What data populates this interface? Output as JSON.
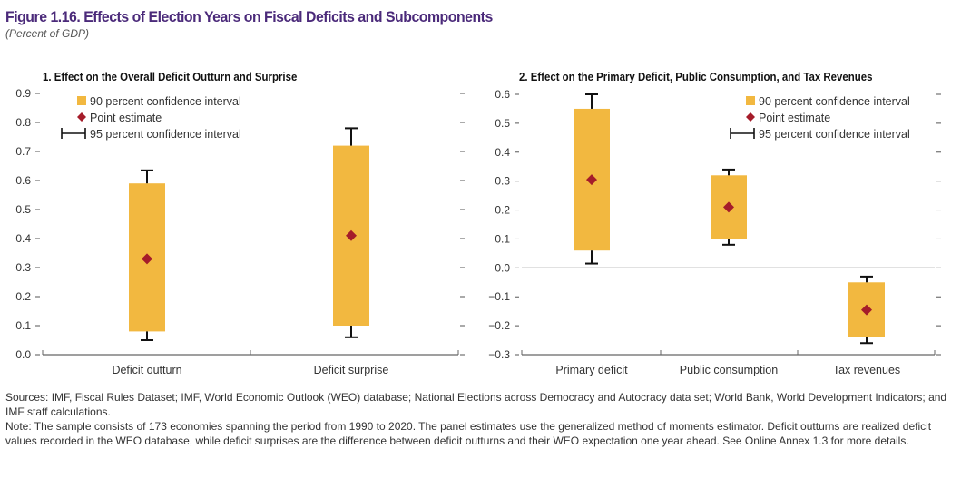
{
  "figure": {
    "title": "Figure 1.16. Effects of Election Years on Fiscal Deficits and Subcomponents",
    "subtitle": "(Percent of GDP)",
    "sources": "Sources: IMF, Fiscal Rules Dataset; IMF, World Economic Outlook (WEO) database; National Elections across Democracy and Autocracy data set; World Bank, World Development Indicators; and IMF staff calculations.",
    "note": "Note: The sample consists of 173 economies spanning the period from 1990 to 2020. The panel estimates use the generalized method of moments estimator. Deficit outturns are realized deficit values recorded in the WEO database, while deficit surprises are the difference between deficit outturns and their WEO expectation one year ahead. See Online Annex 1.3 for more details."
  },
  "colors": {
    "box": "#f2b840",
    "point": "#a51c2a",
    "whisker": "#111111",
    "title": "#4b2a7a"
  },
  "chart_data": [
    {
      "type": "box",
      "title": "1. Effect on the Overall Deficit Outturn and Surprise",
      "ylim": [
        0,
        0.9
      ],
      "yticks": [
        "0.0",
        "0.1",
        "0.2",
        "0.3",
        "0.4",
        "0.5",
        "0.6",
        "0.7",
        "0.8",
        "0.9"
      ],
      "legend": {
        "position": "top-left",
        "ci90": "90 percent confidence interval",
        "point": "Point estimate",
        "ci95": "95 percent confidence interval"
      },
      "categories": [
        "Deficit outturn",
        "Deficit surprise"
      ],
      "ci90_low": [
        0.08,
        0.1
      ],
      "ci90_high": [
        0.59,
        0.72
      ],
      "ci95_low": [
        0.05,
        0.06
      ],
      "ci95_high": [
        0.635,
        0.78
      ],
      "point": [
        0.33,
        0.41
      ]
    },
    {
      "type": "box",
      "title": "2. Effect on the Primary Deficit, Public Consumption, and Tax Revenues",
      "ylim": [
        -0.3,
        0.6
      ],
      "yticks": [
        "−0.3",
        "−0.2",
        "−0.1",
        "0.0",
        "0.1",
        "0.2",
        "0.3",
        "0.4",
        "0.5",
        "0.6"
      ],
      "legend": {
        "position": "top-right",
        "ci90": "90 percent confidence interval",
        "point": "Point estimate",
        "ci95": "95 percent confidence interval"
      },
      "categories": [
        "Primary deficit",
        "Public consumption",
        "Tax revenues"
      ],
      "ci90_low": [
        0.06,
        0.1,
        -0.24
      ],
      "ci90_high": [
        0.55,
        0.32,
        -0.05
      ],
      "ci95_low": [
        0.015,
        0.08,
        -0.26
      ],
      "ci95_high": [
        0.6,
        0.34,
        -0.03
      ],
      "point": [
        0.305,
        0.21,
        -0.145
      ]
    }
  ]
}
